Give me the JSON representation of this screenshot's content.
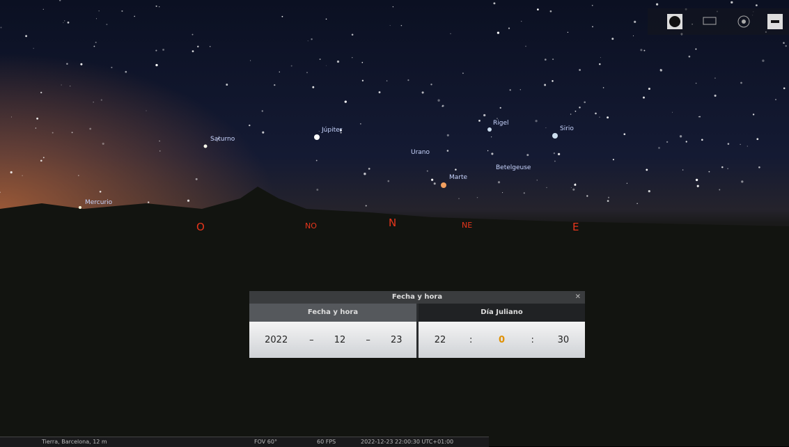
{
  "sky_labels": {
    "saturno": "Saturno",
    "jupiter": "Júpiter",
    "mercurio": "Mercurio",
    "urano": "Urano",
    "marte": "Marte",
    "betelgeuse": "Betelgeuse",
    "rigel": "Rigel",
    "sirio": "Sirio"
  },
  "cardinals": {
    "west": "O",
    "northwest": "NO",
    "north": "N",
    "northeast": "NE",
    "east": "E"
  },
  "dialog": {
    "title": "Fecha y hora",
    "tabs": [
      "Fecha y hora",
      "Día Juliano"
    ],
    "date": {
      "year": 2022,
      "month": 12,
      "day": 23,
      "separator": "–"
    },
    "time": {
      "hour": 22,
      "minute": 0,
      "second": 30,
      "separator": ":"
    },
    "close": "✕"
  },
  "status_bar": {
    "location": "Tierra, Barcelona, 12 m",
    "fov": "FOV 60°",
    "fps": "60 FPS",
    "datetime": "2022-12-23 22:00:30 UTC+01:00"
  }
}
